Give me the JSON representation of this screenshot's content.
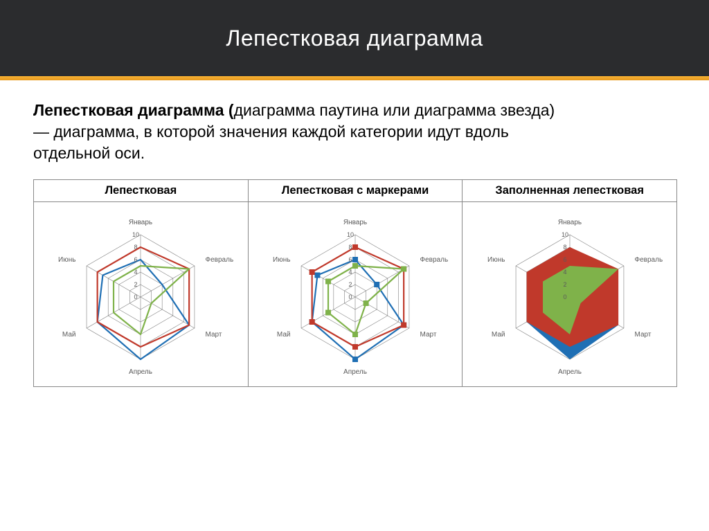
{
  "header": {
    "title": "Лепестковая диаграмма"
  },
  "description": {
    "bold": "Лепестковая диаграмма (",
    "rest": "диаграмма паутина или диаграмма звезда) — диаграмма, в которой значения каждой категории идут вдоль отдельной оси."
  },
  "common": {
    "categories": [
      "Январь",
      "Февраль",
      "Март",
      "Апрель",
      "Май",
      "Июнь"
    ],
    "axis_max": 10,
    "ticks": [
      0,
      2,
      4,
      6,
      8,
      10
    ],
    "grid_color": "#7f7f7f",
    "grid_stroke": 0.6,
    "label_fontsize": 10,
    "tick_fontsize": 9,
    "background_color": "#ffffff"
  },
  "series": {
    "blue": {
      "color": "#1f6fb4",
      "values": [
        6,
        4,
        9,
        10,
        8,
        7
      ]
    },
    "red": {
      "color": "#c0392b",
      "values": [
        8,
        9,
        9,
        8,
        8,
        8
      ]
    },
    "green": {
      "color": "#7fb24a",
      "values": [
        5,
        9,
        2,
        6,
        5,
        5
      ]
    }
  },
  "charts": [
    {
      "title": "Лепестковая",
      "type": "radar-line",
      "markers": false,
      "filled": false,
      "series_order": [
        "blue",
        "red",
        "green"
      ],
      "line_width": 2.2
    },
    {
      "title": "Лепестковая с маркерами",
      "type": "radar-line",
      "markers": true,
      "marker_size": 4,
      "filled": false,
      "series_order": [
        "blue",
        "red",
        "green"
      ],
      "line_width": 2.2
    },
    {
      "title": "Заполненная лепестковая",
      "type": "radar-filled",
      "markers": false,
      "filled": true,
      "fill_opacity": 1.0,
      "series_order": [
        "blue",
        "red",
        "green"
      ],
      "line_width": 0
    }
  ]
}
